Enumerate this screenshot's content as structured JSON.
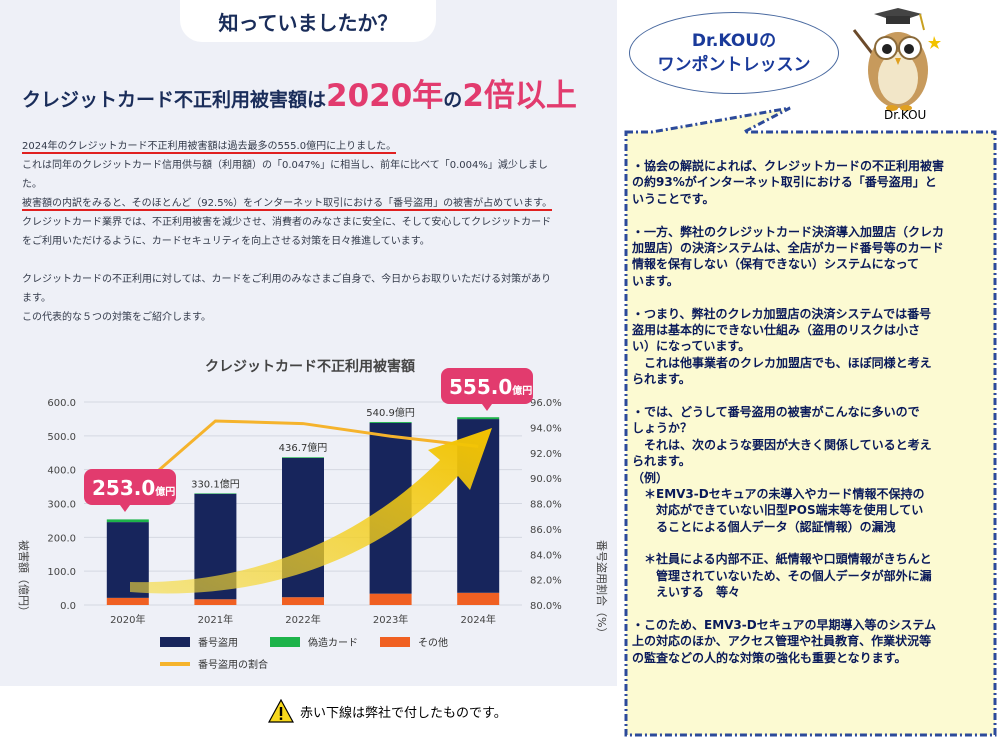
{
  "left": {
    "badge": "知っていましたか？",
    "headline": {
      "part1": "クレジットカード不正利用被害額は",
      "part2": "2020年",
      "part3": "の",
      "part4": "2倍以上"
    },
    "para1": [
      "2024年のクレジットカード不正利用被害額は過去最多の555.0億円に上りました。",
      "これは同年のクレジットカード信用供与額（利用額）の「0.047%」に相当し、前年に比べて「0.004%」減少しまし",
      "た。",
      "被害額の内訳をみると、そのほとんど（92.5%）をインターネット取引における「番号盗用」の被害が占めています。",
      "クレジットカード業界では、不正利用被害を減少させ、消費者のみなさまに安全に、そして安心してクレジットカード",
      "をご利用いただけるように、カードセキュリティを向上させる対策を日々推進しています。"
    ],
    "para2": [
      "クレジットカードの不正利用に対しては、カードをご利用のみなさまご自身で、今日からお取りいただける対策があり",
      "ます。",
      "この代表的な５つの対策をご紹介します。"
    ],
    "note": "赤い下線は弊社で付したものです。"
  },
  "chart_data": {
    "type": "bar",
    "title": "クレジットカード不正利用被害額",
    "categories": [
      "2020年",
      "2021年",
      "2022年",
      "2023年",
      "2024年"
    ],
    "series": [
      {
        "name": "番号盗用",
        "values": [
          223.9,
          311.7,
          411.7,
          504.7,
          513.4
        ],
        "color": "#17255c"
      },
      {
        "name": "偽造カード",
        "values": [
          8.0,
          1.5,
          2.0,
          2.7,
          5.5
        ],
        "color": "#1db34a"
      },
      {
        "name": "その他",
        "values": [
          21.1,
          16.9,
          23.0,
          33.5,
          36.1
        ],
        "color": "#f06022"
      }
    ],
    "line": {
      "name": "番号盗用の割合",
      "values": [
        88.5,
        94.5,
        94.3,
        93.3,
        92.5
      ],
      "color": "#f5b32c"
    },
    "totals": [
      253.0,
      330.1,
      436.7,
      540.9,
      555.0
    ],
    "total_labels": [
      "253.0億円",
      "330.1億円",
      "436.7億円",
      "540.9億円",
      "555.0億円"
    ],
    "highlight_labels": {
      "first_value": "253.0",
      "last_value": "555.0",
      "unit": "億円"
    },
    "ylabel": "被害額（億円）",
    "y2label": "番号盗用割合（%）",
    "ylim": [
      0,
      600
    ],
    "y2lim": [
      80,
      96
    ],
    "yticks": [
      "0.0",
      "100.0",
      "200.0",
      "300.0",
      "400.0",
      "500.0",
      "600.0"
    ],
    "y2ticks": [
      "80.0%",
      "82.0%",
      "84.0%",
      "86.0%",
      "88.0%",
      "90.0%",
      "92.0%",
      "94.0%",
      "96.0%"
    ],
    "grid": true,
    "legend": "bottom"
  },
  "right": {
    "bubble_line1": "Dr.KOUの",
    "bubble_line2": "ワンポントレッスン",
    "name": "Dr.KOU",
    "paragraphs": [
      [
        "・協会の解説によれば、クレジットカードの不正利用被害",
        "の約93%がインターネット取引における「番号盗用」と",
        "いうことです。"
      ],
      [
        "・一方、弊社のクレジットカード決済導入加盟店（クレカ",
        "加盟店）の決済システムは、全店がカード番号等のカード",
        "情報を保有しない（保有できない）システムになって",
        "います。"
      ],
      [
        "・つまり、弊社のクレカ加盟店の決済システムでは番号",
        "盗用は基本的にできない仕組み（盗用のリスクは小さ",
        "い）になっています。",
        "　これは他事業者のクレカ加盟店でも、ほぼ同様と考え",
        "られます。"
      ],
      [
        "・では、どうして番号盗用の被害がこんなに多いので",
        "しょうか？",
        "　それは、次のような要因が大きく関係していると考え",
        "られます。",
        "（例）",
        "　＊EMV3-Dセキュアの未導入やカード情報不保持の",
        "　　対応ができていない旧型POS端末等を使用してい",
        "　　ることによる個人データ（認証情報）の漏洩"
      ],
      [
        "　＊社員による内部不正、紙情報や口頭情報がきちんと",
        "　　管理されていないため、その個人データが部外に漏",
        "　　えいする　等々"
      ],
      [
        "・このため、EMV3-Dセキュアの早期導入等のシステム",
        "上の対応のほか、アクセス管理や社員教育、作業状況等",
        "の監査などの人的な対策の強化も重要となります。"
      ]
    ]
  }
}
